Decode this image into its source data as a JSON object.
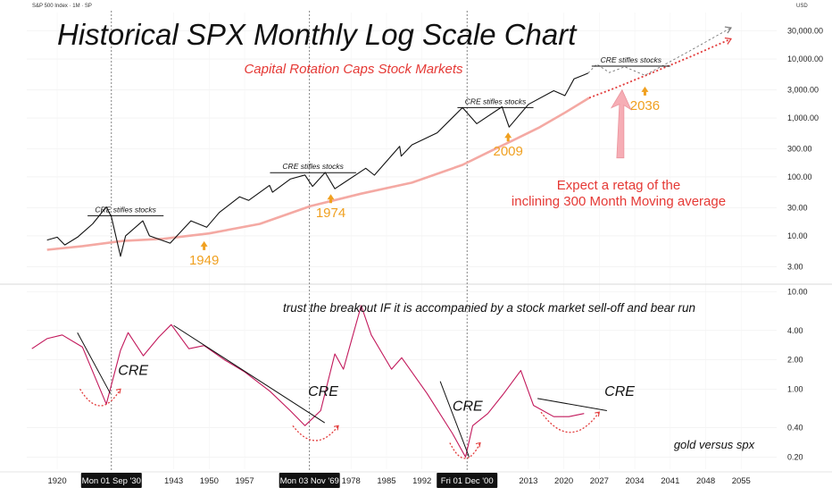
{
  "header": {
    "symbol": "S&P 500 Index · 1M · SP",
    "currency": "USD"
  },
  "annotations": {
    "title": "Historical SPX Monthly Log Scale Chart",
    "subtitle": "Capital Rotation Caps Stock Markets",
    "expect_line1": "Expect a retag of the",
    "expect_line2": "inclining 300 Month Moving average",
    "cre_stifles": "CRE stifles stocks",
    "breakout_note": "trust the breakout IF it is accompanied by a stock market sell-off and bear run",
    "cre": "CRE",
    "gold_vs_spx": "gold versus spx"
  },
  "cursor_dates": [
    "Mon 01 Sep '30",
    "Mon 03 Nov '69",
    "Fri 01 Dec '00"
  ],
  "colors": {
    "price_line": "#111111",
    "ma_line": "#f4a9a3",
    "projection_red": "#e23b3b",
    "ratio_line": "#c2185b",
    "title_red": "#e53935",
    "year_orange": "#f0a020",
    "arrow_pink": "#f6a5ad",
    "grid": "#eeeeee"
  },
  "chart_data": [
    {
      "type": "line",
      "title": "Historical SPX Monthly Log Scale Chart",
      "subtitle": "Capital Rotation Caps Stock Markets",
      "log_scale": true,
      "xlim": [
        1914,
        2062
      ],
      "ylim": [
        2,
        50000
      ],
      "y_ticks": [
        "30,000.00",
        "10,000.00",
        "3,000.00",
        "1,000.00",
        "300.00",
        "100.00",
        "30.00",
        "10.00",
        "3.00"
      ],
      "y_tick_values": [
        30000,
        10000,
        3000,
        1000,
        300,
        100,
        30,
        10,
        3
      ],
      "series": [
        {
          "role": "price",
          "x": [
            1918,
            1920,
            1921.5,
            1924,
            1927,
            1929.7,
            1930.7,
            1932.5,
            1933.5,
            1936.9,
            1938.2,
            1942.3,
            1946.4,
            1949.5,
            1952,
            1956,
            1957.8,
            1961.9,
            1962.5,
            1966,
            1968.9,
            1970.4,
            1972.9,
            1974.8,
            1980.9,
            1982.6,
            1987.6,
            1987.9,
            1990,
            1995,
            2000,
            2002.8,
            2007.8,
            2009.2,
            2013,
            2018,
            2020.2,
            2022,
            2024,
            2024.8
          ],
          "y": [
            8.5,
            9.5,
            7,
            9.5,
            16,
            31,
            21,
            4.5,
            10,
            18,
            10,
            7.5,
            18,
            14,
            25,
            46,
            40,
            72,
            55,
            92,
            108,
            69,
            119,
            63,
            140,
            107,
            330,
            225,
            350,
            560,
            1500,
            800,
            1550,
            700,
            1700,
            2900,
            2400,
            4600,
            5400,
            5800
          ]
        },
        {
          "role": "300 Month Moving average",
          "x": [
            1918,
            1925,
            1933,
            1941,
            1950,
            1960,
            1970,
            1980,
            1990,
            2000,
            2005,
            2010,
            2015,
            2020,
            2025
          ],
          "y": [
            5.8,
            6.7,
            8.2,
            8.9,
            11,
            16,
            32,
            52,
            80,
            160,
            260,
            420,
            680,
            1200,
            2200
          ]
        },
        {
          "role": "projection MA",
          "x": [
            2025,
            2030,
            2036,
            2045,
            2053
          ],
          "y": [
            2200,
            3200,
            5200,
            11000,
            22000
          ]
        },
        {
          "role": "projection path",
          "x": [
            2024.8,
            2026.5,
            2029,
            2032,
            2036,
            2045,
            2053
          ],
          "y": [
            5800,
            8200,
            5900,
            7400,
            5300,
            14000,
            34000
          ]
        }
      ],
      "year_labels": [
        {
          "label": "1949",
          "x": 1949,
          "y": 10
        },
        {
          "label": "1974",
          "x": 1974,
          "y": 63
        },
        {
          "label": "2009",
          "x": 2009,
          "y": 700
        },
        {
          "label": "2036",
          "x": 2036,
          "y": 4200
        }
      ],
      "cre_stifles_segments": [
        {
          "x1": 1926,
          "x2": 1941,
          "y": 22
        },
        {
          "x1": 1962,
          "x2": 1979,
          "y": 118
        },
        {
          "x1": 1999,
          "x2": 2014,
          "y": 1500
        },
        {
          "x1": 2025.5,
          "x2": 2041,
          "y": 7600
        }
      ]
    },
    {
      "type": "line",
      "title": "gold versus spx",
      "log_scale": true,
      "xlim": [
        1914,
        2062
      ],
      "ylim": [
        0.15,
        11
      ],
      "y_ticks": [
        "10.00",
        "4.00",
        "2.00",
        "1.00",
        "0.40",
        "0.20"
      ],
      "y_tick_values": [
        10,
        4,
        2,
        1,
        0.4,
        0.2
      ],
      "x_ticks": [
        "1920",
        "1943",
        "1950",
        "1957",
        "1978",
        "1985",
        "1992",
        "2013",
        "2020",
        "2027",
        "2034",
        "2041",
        "2048",
        "2055"
      ],
      "x_tick_values": [
        1920,
        1943,
        1950,
        1957,
        1978,
        1985,
        1992,
        2013,
        2020,
        2027,
        2034,
        2041,
        2048,
        2055
      ],
      "series": [
        {
          "role": "gold/spx ratio",
          "x": [
            1915,
            1918,
            1921,
            1925,
            1929.7,
            1932.5,
            1934,
            1937,
            1940,
            1942.5,
            1946,
            1949,
            1953,
            1957,
            1962,
            1966,
            1968.9,
            1972,
            1974.8,
            1976.5,
            1980,
            1982,
            1986,
            1988,
            1993,
            1998,
            2000.6,
            2002,
            2005,
            2008,
            2011.5,
            2014,
            2018,
            2021,
            2024
          ],
          "y": [
            2.6,
            3.3,
            3.6,
            2.7,
            0.7,
            2.5,
            3.8,
            2.2,
            3.4,
            4.6,
            2.6,
            2.8,
            2.0,
            1.5,
            0.95,
            0.6,
            0.42,
            0.6,
            2.3,
            1.6,
            7.2,
            3.6,
            1.6,
            2.1,
            0.9,
            0.35,
            0.2,
            0.42,
            0.56,
            0.88,
            1.55,
            0.68,
            0.52,
            0.52,
            0.56
          ]
        }
      ],
      "trendlines": [
        {
          "x1": 1924,
          "y1": 3.8,
          "x2": 1930.5,
          "y2": 0.9
        },
        {
          "x1": 1943,
          "y1": 4.5,
          "x2": 1972.8,
          "y2": 0.45
        },
        {
          "x1": 1995.6,
          "y1": 1.2,
          "x2": 2001.3,
          "y2": 0.2
        },
        {
          "x1": 2014.8,
          "y1": 0.8,
          "x2": 2028.5,
          "y2": 0.6
        }
      ],
      "bottom_arcs": [
        {
          "x1": 1924.5,
          "x2": 1932.5,
          "y_top": 1.0,
          "y_bottom": 0.66
        },
        {
          "x1": 1966.5,
          "x2": 1975.5,
          "y_top": 0.42,
          "y_bottom": 0.29
        },
        {
          "x1": 1997.5,
          "x2": 2003.5,
          "y_top": 0.28,
          "y_bottom": 0.19
        },
        {
          "x1": 2015.5,
          "x2": 2027,
          "y_top": 0.58,
          "y_bottom": 0.35
        }
      ],
      "cre_labels": [
        {
          "x": 1935,
          "y": 1.4
        },
        {
          "x": 1972.5,
          "y": 0.85
        },
        {
          "x": 2001,
          "y": 0.6
        },
        {
          "x": 2031,
          "y": 0.85
        }
      ]
    }
  ]
}
